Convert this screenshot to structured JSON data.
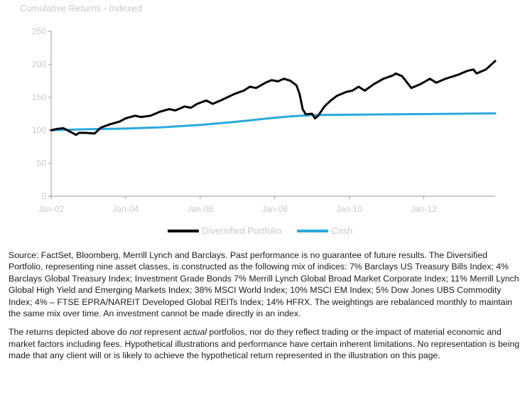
{
  "chart_data": {
    "type": "line",
    "title": "Cumulative Returns - Indexed",
    "xlabel": "",
    "ylabel": "",
    "ylim": [
      0,
      250
    ],
    "yticks": [
      0,
      50,
      100,
      150,
      200,
      250
    ],
    "x_start": "2002-01",
    "x_end": "2013-12",
    "xtick_labels": [
      "Jan-02",
      "Jan-04",
      "Jan-06",
      "Jan-08",
      "Jan-10",
      "Jan-12"
    ],
    "xtick_dates": [
      "2002-01",
      "2004-01",
      "2006-01",
      "2008-01",
      "2010-01",
      "2012-01"
    ],
    "legend_position": "bottom",
    "grid": false,
    "series": [
      {
        "name": "Diversified Portfolio",
        "color": "#000000",
        "points": [
          [
            "2002-01",
            100
          ],
          [
            "2002-03",
            102
          ],
          [
            "2002-05",
            103
          ],
          [
            "2002-07",
            98
          ],
          [
            "2002-09",
            93
          ],
          [
            "2002-10",
            96
          ],
          [
            "2002-12",
            96
          ],
          [
            "2003-03",
            95
          ],
          [
            "2003-05",
            104
          ],
          [
            "2003-08",
            109
          ],
          [
            "2003-11",
            113
          ],
          [
            "2004-01",
            118
          ],
          [
            "2004-04",
            122
          ],
          [
            "2004-06",
            120
          ],
          [
            "2004-09",
            122
          ],
          [
            "2004-12",
            128
          ],
          [
            "2005-03",
            132
          ],
          [
            "2005-05",
            130
          ],
          [
            "2005-08",
            136
          ],
          [
            "2005-10",
            134
          ],
          [
            "2005-12",
            140
          ],
          [
            "2006-03",
            145
          ],
          [
            "2006-05",
            140
          ],
          [
            "2006-08",
            146
          ],
          [
            "2006-12",
            155
          ],
          [
            "2007-03",
            160
          ],
          [
            "2007-05",
            166
          ],
          [
            "2007-07",
            164
          ],
          [
            "2007-10",
            172
          ],
          [
            "2007-12",
            176
          ],
          [
            "2008-02",
            174
          ],
          [
            "2008-04",
            178
          ],
          [
            "2008-06",
            175
          ],
          [
            "2008-08",
            168
          ],
          [
            "2008-09",
            155
          ],
          [
            "2008-10",
            132
          ],
          [
            "2008-11",
            124
          ],
          [
            "2009-01",
            125
          ],
          [
            "2009-02",
            118
          ],
          [
            "2009-03",
            122
          ],
          [
            "2009-05",
            136
          ],
          [
            "2009-07",
            145
          ],
          [
            "2009-09",
            152
          ],
          [
            "2009-12",
            158
          ],
          [
            "2010-02",
            160
          ],
          [
            "2010-04",
            166
          ],
          [
            "2010-06",
            160
          ],
          [
            "2010-09",
            170
          ],
          [
            "2010-12",
            178
          ],
          [
            "2011-03",
            183
          ],
          [
            "2011-04",
            186
          ],
          [
            "2011-06",
            182
          ],
          [
            "2011-08",
            170
          ],
          [
            "2011-09",
            164
          ],
          [
            "2011-12",
            170
          ],
          [
            "2012-03",
            178
          ],
          [
            "2012-05",
            172
          ],
          [
            "2012-08",
            178
          ],
          [
            "2012-12",
            184
          ],
          [
            "2013-03",
            190
          ],
          [
            "2013-05",
            192
          ],
          [
            "2013-06",
            186
          ],
          [
            "2013-09",
            192
          ],
          [
            "2013-12",
            205
          ]
        ]
      },
      {
        "name": "Cash",
        "color": "#29a9e0",
        "points": [
          [
            "2002-01",
            100
          ],
          [
            "2003-01",
            101.5
          ],
          [
            "2004-01",
            102.5
          ],
          [
            "2005-01",
            104.5
          ],
          [
            "2006-01",
            108
          ],
          [
            "2007-01",
            113
          ],
          [
            "2008-01",
            119
          ],
          [
            "2008-06",
            121
          ],
          [
            "2009-01",
            123
          ],
          [
            "2010-01",
            123.5
          ],
          [
            "2011-01",
            124
          ],
          [
            "2012-01",
            124.5
          ],
          [
            "2013-01",
            125
          ],
          [
            "2013-12",
            125.5
          ]
        ]
      }
    ]
  },
  "notes": {
    "source": "Source: FactSet, Bloomberg, Merrill Lynch and Barclays. Past performance is no guarantee of future results. The Diversified Portfolio, representing nine asset classes, is constructed as the following mix of indices: 7% Barclays US Treasury Bills Index; 4% Barclays Global Treasury Index; Investment Grade Bonds 7% Merrill Lynch Global Broad Market Corporate Index; 11% Merrill Lynch Global High Yield and Emerging Markets Index; 38% MSCI World Index; 10% MSCI EM Index; 5% Dow Jones UBS Commodity Index; 4% – FTSE EPRA/NAREIT Developed Global REITs Index; 14% HFRX. The weightings are rebalanced monthly to maintain the same mix over time. An investment cannot be made directly in an index.",
    "disclaimer_before_not": "The returns depicted above do ",
    "disclaimer_not": "not",
    "disclaimer_middle": " represent ",
    "disclaimer_actual": "actual",
    "disclaimer_after": " portfolios, nor do they reflect trading or the impact of material economic and market factors including fees. Hypothetical illustrations and performance have certain inherent limitations. No representation is being made that any client will or is likely to achieve the hypothetical return represented in the illustration on this page."
  }
}
